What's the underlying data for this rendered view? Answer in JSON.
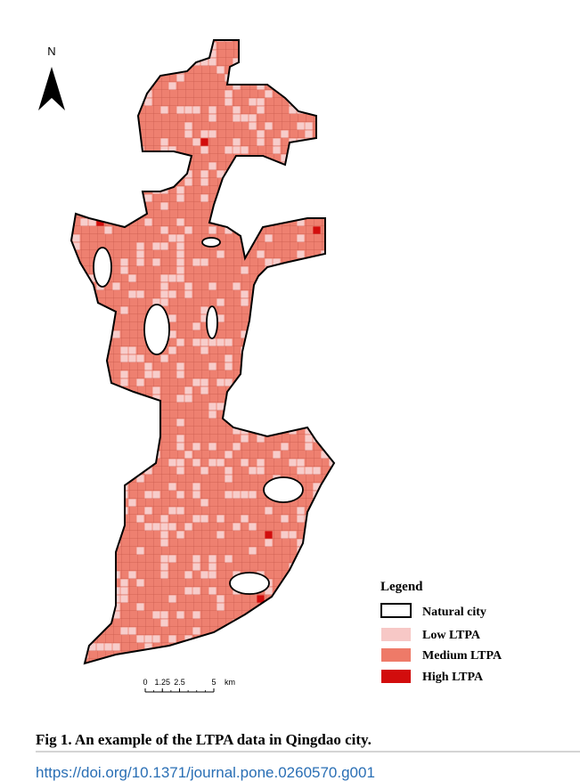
{
  "north": "N",
  "scale_bar": {
    "ticks": [
      0,
      1.25,
      2.5,
      5
    ],
    "unit": "km"
  },
  "legend": {
    "title": "Legend",
    "items": [
      "Natural city",
      "Low LTPA",
      "Medium LTPA",
      "High LTPA"
    ]
  },
  "caption": "Fig 1. An example of the LTPA data in Qingdao city.",
  "doi": "https://doi.org/10.1371/journal.pone.0260570.g001"
}
